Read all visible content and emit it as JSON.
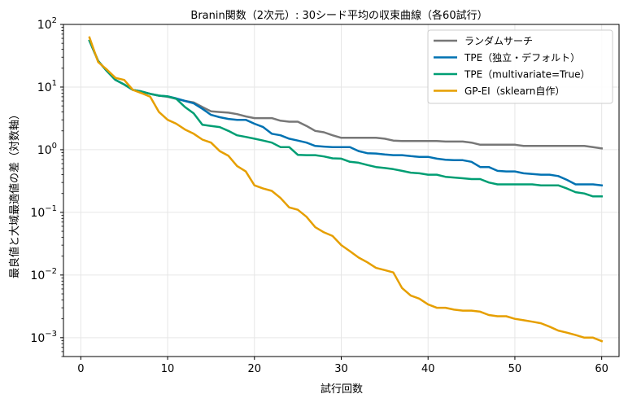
{
  "chart_data": {
    "type": "line",
    "title": "Branin関数（2次元）: 30シード平均の収束曲線（各60試行）",
    "xlabel": "試行回数",
    "ylabel": "最良値と大域最適値の差（対数軸）",
    "xlim": [
      -2,
      62
    ],
    "ylim": [
      0.0005,
      100
    ],
    "yscale": "log",
    "grid": true,
    "legend_position": "top-right",
    "x_ticks": [
      0,
      10,
      20,
      30,
      40,
      50,
      60
    ],
    "x_tick_labels": [
      "0",
      "10",
      "20",
      "30",
      "40",
      "50",
      "60"
    ],
    "y_ticks": [
      100,
      10,
      1,
      0.1,
      0.01,
      0.001
    ],
    "y_tick_labels": [
      {
        "base": "10",
        "exp": "2"
      },
      {
        "base": "10",
        "exp": "1"
      },
      {
        "base": "10",
        "exp": "0"
      },
      {
        "base": "10",
        "exp": "−1"
      },
      {
        "base": "10",
        "exp": "−2"
      },
      {
        "base": "10",
        "exp": "−3"
      }
    ],
    "x": [
      1,
      2,
      3,
      4,
      5,
      6,
      7,
      8,
      9,
      10,
      11,
      12,
      13,
      14,
      15,
      16,
      17,
      18,
      19,
      20,
      21,
      22,
      23,
      24,
      25,
      26,
      27,
      28,
      29,
      30,
      31,
      32,
      33,
      34,
      35,
      36,
      37,
      38,
      39,
      40,
      41,
      42,
      43,
      44,
      45,
      46,
      47,
      48,
      49,
      50,
      51,
      52,
      53,
      54,
      55,
      56,
      57,
      58,
      59,
      60
    ],
    "series": [
      {
        "name": "ランダムサーチ",
        "color": "#777777",
        "values": [
          55,
          26,
          18,
          13,
          11,
          9,
          8.5,
          7.8,
          7.3,
          7.0,
          6.5,
          6.0,
          5.7,
          4.8,
          4.1,
          4.0,
          3.9,
          3.7,
          3.4,
          3.2,
          3.2,
          3.2,
          2.9,
          2.8,
          2.8,
          2.4,
          2.0,
          1.9,
          1.7,
          1.55,
          1.55,
          1.55,
          1.55,
          1.55,
          1.5,
          1.4,
          1.38,
          1.38,
          1.38,
          1.38,
          1.38,
          1.35,
          1.35,
          1.35,
          1.3,
          1.2,
          1.2,
          1.2,
          1.2,
          1.2,
          1.15,
          1.15,
          1.15,
          1.15,
          1.15,
          1.15,
          1.15,
          1.15,
          1.1,
          1.05
        ]
      },
      {
        "name": "TPE（独立・デフォルト）",
        "color": "#0072B2",
        "values": [
          55,
          26,
          18,
          13,
          11,
          9,
          8.5,
          7.8,
          7.3,
          7.1,
          6.6,
          6.0,
          5.5,
          4.5,
          3.6,
          3.3,
          3.1,
          3.0,
          3.0,
          2.6,
          2.3,
          1.8,
          1.7,
          1.5,
          1.4,
          1.3,
          1.15,
          1.12,
          1.1,
          1.1,
          1.1,
          0.95,
          0.88,
          0.87,
          0.84,
          0.82,
          0.82,
          0.79,
          0.77,
          0.77,
          0.72,
          0.69,
          0.68,
          0.68,
          0.64,
          0.53,
          0.53,
          0.46,
          0.45,
          0.45,
          0.42,
          0.41,
          0.4,
          0.4,
          0.38,
          0.33,
          0.28,
          0.28,
          0.28,
          0.27
        ]
      },
      {
        "name": "TPE（multivariate=True）",
        "color": "#009E73",
        "values": [
          55,
          26,
          18,
          13,
          11,
          9,
          8.5,
          7.8,
          7.3,
          7.1,
          6.5,
          4.8,
          3.8,
          2.5,
          2.4,
          2.3,
          2.0,
          1.7,
          1.6,
          1.5,
          1.4,
          1.3,
          1.1,
          1.1,
          0.83,
          0.82,
          0.82,
          0.78,
          0.73,
          0.72,
          0.64,
          0.62,
          0.57,
          0.53,
          0.51,
          0.49,
          0.46,
          0.43,
          0.42,
          0.4,
          0.4,
          0.37,
          0.36,
          0.35,
          0.34,
          0.34,
          0.3,
          0.28,
          0.28,
          0.28,
          0.28,
          0.28,
          0.27,
          0.27,
          0.27,
          0.24,
          0.21,
          0.2,
          0.18,
          0.18
        ]
      },
      {
        "name": "GP-EI（sklearn自作）",
        "color": "#E69F00",
        "values": [
          62,
          25,
          19,
          14,
          13,
          9,
          8,
          7,
          4,
          3,
          2.6,
          2.1,
          1.8,
          1.45,
          1.3,
          0.95,
          0.8,
          0.55,
          0.45,
          0.27,
          0.24,
          0.22,
          0.17,
          0.12,
          0.11,
          0.085,
          0.058,
          0.048,
          0.042,
          0.03,
          0.024,
          0.019,
          0.016,
          0.013,
          0.012,
          0.011,
          0.0062,
          0.0047,
          0.0042,
          0.0034,
          0.003,
          0.003,
          0.0028,
          0.0027,
          0.0027,
          0.0026,
          0.0023,
          0.0022,
          0.0022,
          0.002,
          0.0019,
          0.0018,
          0.0017,
          0.0015,
          0.0013,
          0.0012,
          0.0011,
          0.001,
          0.001,
          0.00088
        ]
      }
    ]
  }
}
